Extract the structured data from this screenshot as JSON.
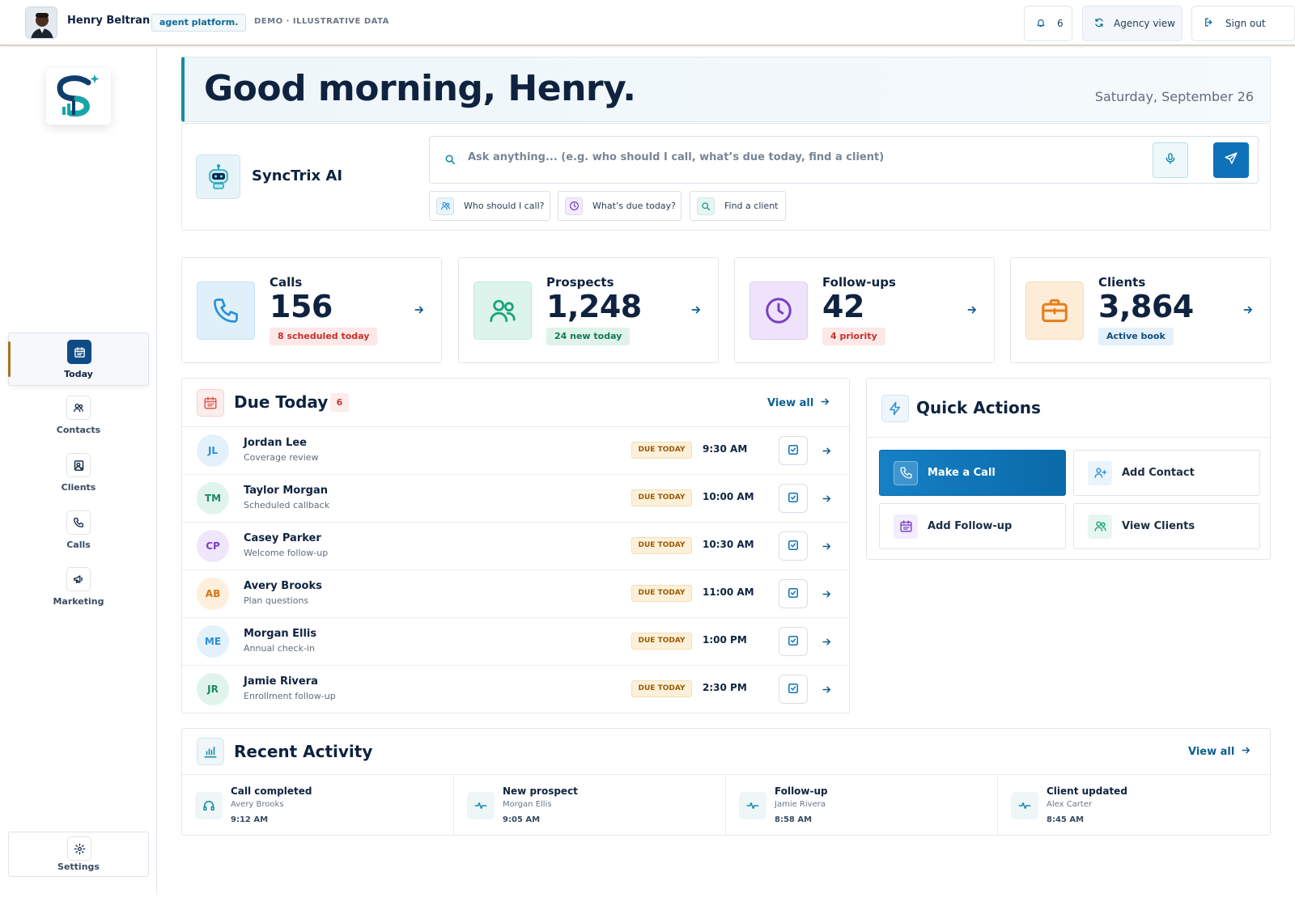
{
  "topbar": {
    "user_name": "Henry Beltran",
    "platform_badge": "agent platform.",
    "demo_label": "DEMO · ILLUSTRATIVE DATA",
    "notifications_count": "6",
    "agency_label": "Agency view",
    "signout_label": "Sign out"
  },
  "sidebar": {
    "items": [
      {
        "label": "Today",
        "icon": "calendar-icon",
        "active": true
      },
      {
        "label": "Contacts",
        "icon": "users-icon",
        "active": false
      },
      {
        "label": "Clients",
        "icon": "client-card-icon",
        "active": false
      },
      {
        "label": "Calls",
        "icon": "phone-icon",
        "active": false
      },
      {
        "label": "Marketing",
        "icon": "megaphone-icon",
        "active": false
      }
    ],
    "settings_label": "Settings"
  },
  "greeting": {
    "title": "Good morning, Henry.",
    "date": "Saturday, September 26"
  },
  "assistant": {
    "name": "SyncTrix AI",
    "placeholder": "Ask anything... (e.g. who should I call, what’s due today, find a client)",
    "chips": [
      "Who should I call?",
      "What’s due today?",
      "Find a client"
    ]
  },
  "stats": [
    {
      "label": "Calls",
      "value": "156",
      "pill": "8 scheduled today",
      "icon": "phone-icon",
      "accent": "#2b8fd6"
    },
    {
      "label": "Prospects",
      "value": "1,248",
      "pill": "24 new today",
      "icon": "users-icon",
      "accent": "#1aa57a"
    },
    {
      "label": "Follow-ups",
      "value": "42",
      "pill": "4 priority",
      "icon": "clock-icon",
      "accent": "#7b3fc4"
    },
    {
      "label": "Clients",
      "value": "3,864",
      "pill": "Active book",
      "icon": "briefcase-icon",
      "accent": "#e67e1a"
    }
  ],
  "due_today": {
    "title": "Due Today",
    "count": "6",
    "view_all": "View all",
    "badge": "DUE TODAY",
    "rows": [
      {
        "initials": "JL",
        "name": "Jordan Lee",
        "task": "Coverage review",
        "time": "9:30 AM"
      },
      {
        "initials": "TM",
        "name": "Taylor Morgan",
        "task": "Scheduled callback",
        "time": "10:00 AM"
      },
      {
        "initials": "CP",
        "name": "Casey Parker",
        "task": "Welcome follow-up",
        "time": "10:30 AM"
      },
      {
        "initials": "AB",
        "name": "Avery Brooks",
        "task": "Plan questions",
        "time": "11:00 AM"
      },
      {
        "initials": "ME",
        "name": "Morgan Ellis",
        "task": "Annual check-in",
        "time": "1:00 PM"
      },
      {
        "initials": "JR",
        "name": "Jamie Rivera",
        "task": "Enrollment follow-up",
        "time": "2:30 PM"
      }
    ]
  },
  "quick_actions": {
    "title": "Quick Actions",
    "buttons": [
      "Make a Call",
      "Add Contact",
      "Add Follow-up",
      "View Clients"
    ]
  },
  "recent_activity": {
    "title": "Recent Activity",
    "view_all": "View all",
    "items": [
      {
        "label": "Call completed",
        "who": "Avery Brooks",
        "time": "9:12 AM",
        "icon": "headset-icon"
      },
      {
        "label": "New prospect",
        "who": "Morgan Ellis",
        "time": "9:05 AM",
        "icon": "pulse-icon"
      },
      {
        "label": "Follow-up",
        "who": "Jamie Rivera",
        "time": "8:58 AM",
        "icon": "pulse-icon"
      },
      {
        "label": "Client updated",
        "who": "Alex Carter",
        "time": "8:45 AM",
        "icon": "pulse-icon"
      }
    ]
  }
}
